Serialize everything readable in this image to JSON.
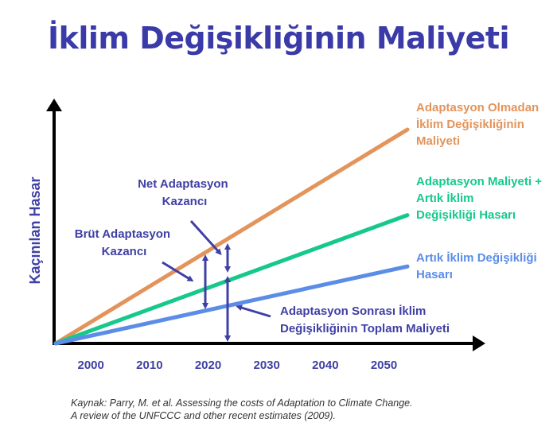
{
  "chart_data": {
    "type": "line",
    "title": "İklim Değişikliğinin Maliyeti",
    "ylabel": "Kaçınılan Hasar",
    "xlabel": "",
    "x_ticks": [
      "2000",
      "2010",
      "2020",
      "2030",
      "2040",
      "2050"
    ],
    "x_start": 1994,
    "x_end": 2054,
    "series": [
      {
        "name": [
          "Adaptasyon Olmadan",
          "İklim Değişikliğinin",
          "Maliyeti"
        ],
        "color": "#e3945b",
        "x": [
          1994,
          2054
        ],
        "y": [
          0,
          1.0
        ]
      },
      {
        "name": [
          "Adaptasyon Maliyeti +",
          "Artık İklim",
          "Değişikliği Hasarı"
        ],
        "color": "#16c98b",
        "x": [
          1994,
          2054
        ],
        "y": [
          0,
          0.6
        ]
      },
      {
        "name": [
          "Artık İklim Değişikliği",
          "Hasarı"
        ],
        "color": "#5b8de8",
        "x": [
          1994,
          2054
        ],
        "y": [
          0,
          0.36
        ]
      }
    ],
    "annotations": [
      {
        "text": [
          "Net Adaptasyon",
          "Kazancı"
        ]
      },
      {
        "text": [
          "Brüt Adaptasyon",
          "Kazancı"
        ]
      },
      {
        "text": [
          "Adaptasyon Sonrası İklim",
          "Değişikliğinin Toplam Maliyeti"
        ]
      }
    ],
    "grid": false,
    "legend": "right"
  },
  "source": {
    "line1": "Kaynak: Parry, M. et al. Assessing the costs of Adaptation to Climate Change.",
    "line2": "A review of the UNFCCC and other recent estimates (2009)."
  },
  "colors": {
    "title": "#3a3aa8",
    "annotation": "#3f3fa6",
    "axis": "#000000"
  }
}
